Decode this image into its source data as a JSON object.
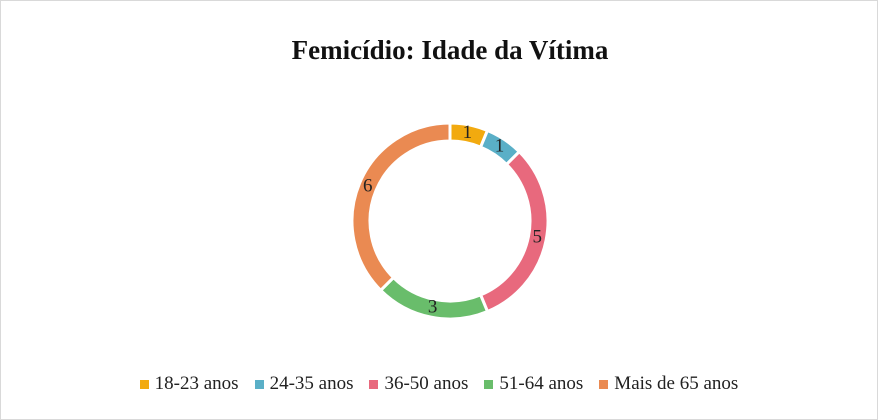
{
  "chart_data": {
    "type": "donut",
    "title": "Femicídio: Idade da Vítima",
    "categories": [
      "18-23 anos",
      "24-35 anos",
      "36-50 anos",
      "51-64 anos",
      "Mais de 65 anos"
    ],
    "values": [
      1,
      1,
      5,
      3,
      6
    ],
    "colors": [
      "#f2aa0f",
      "#5aafc7",
      "#e8697d",
      "#69bd6b",
      "#ea8a52"
    ],
    "legend": "bottom"
  }
}
